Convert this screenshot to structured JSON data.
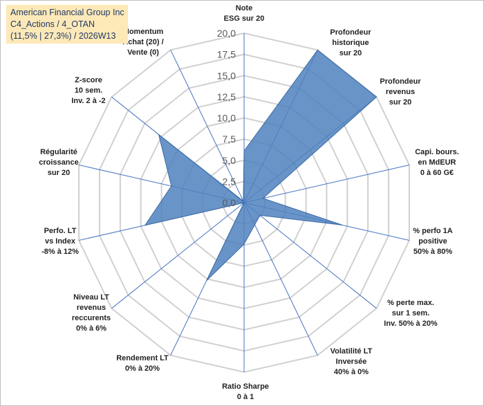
{
  "title": {
    "line1": "American Financial Group Inc",
    "line2": "C4_Actions / 4_OTAN",
    "line3": "(11,5% | 27,3%) / 2026W13"
  },
  "colors": {
    "fill": "#4f81bd",
    "stroke": "#3a6aa6",
    "grid": "#d0d0d0",
    "spoke": "#4472c4",
    "title_bg": "#fde9b8"
  },
  "chart_data": {
    "type": "radar",
    "title": "American Financial Group Inc",
    "rmin": 0,
    "rmax": 20,
    "tick_step": 2.5,
    "tick_labels": [
      "0,0",
      "2,5",
      "5,0",
      "7,5",
      "10,0",
      "12,5",
      "15,0",
      "17,5",
      "20,0"
    ],
    "axes": [
      [
        "Note",
        "ESG sur 20"
      ],
      [
        "Profondeur",
        "historique",
        "sur 20"
      ],
      [
        "Profondeur",
        "revenus",
        "sur 20"
      ],
      [
        "Capi. bours.",
        "en MdEUR",
        "0 à 60 G€"
      ],
      [
        "% perfo 1A",
        "positive",
        "50% à 80%"
      ],
      [
        "% perte max.",
        "sur 1 sem.",
        "Inv. 50% à 20%"
      ],
      [
        "Volatilité LT",
        "Inversée",
        "40% à 0%"
      ],
      [
        "Ratio Sharpe",
        "0 à 1"
      ],
      [
        "Rendement LT",
        "0% à 20%"
      ],
      [
        "Niveau LT",
        "revenus",
        "reccurents",
        "0% à 6%"
      ],
      [
        "Perfo. LT",
        "vs Index",
        "-8% à 12%"
      ],
      [
        "Régularité",
        "croissance",
        "sur 20"
      ],
      [
        "Z-score",
        "10 sem.",
        "Inv. 2 à -2"
      ],
      [
        "Momentum",
        "Achat (20) /",
        "Vente (0)"
      ]
    ],
    "series": [
      {
        "name": "American Financial Group Inc",
        "values": [
          6.1,
          20.0,
          20.0,
          2.3,
          11.9,
          2.4,
          2.9,
          4.9,
          10.2,
          0.0,
          12.0,
          8.8,
          12.9,
          0.2
        ]
      }
    ]
  }
}
